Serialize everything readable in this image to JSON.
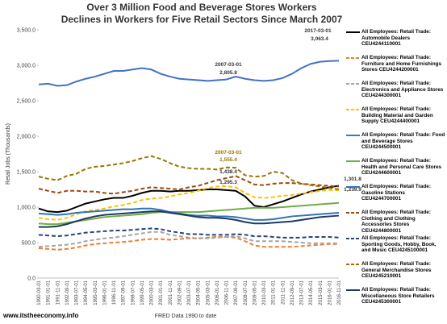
{
  "chart_data": {
    "type": "line",
    "title_lines": [
      "Over 3 Million Food and Beverage Stores Workers",
      "Declines in Workers for Five Retail Sectors Since March 2007"
    ],
    "y_label": "Retail Jobs (Thousands)",
    "x_label": "FRED Data 1990 to date",
    "source": "www.itstheeconomy.info",
    "categories": [
      "1990-03-01",
      "1991-01-01",
      "1991-11-01",
      "1992-09-01",
      "1993-07-01",
      "1994-05-01",
      "1995-03-01",
      "1996-01-01",
      "1996-11-01",
      "1997-09-01",
      "1998-07-01",
      "1999-05-01",
      "2000-03-01",
      "2001-01-01",
      "2001-11-01",
      "2002-09-01",
      "2003-07-01",
      "2004-05-01",
      "2005-03-01",
      "2006-01-01",
      "2006-11-01",
      "2007-09-01",
      "2008-07-01",
      "2009-05-01",
      "2010-03-01",
      "2011-01-01",
      "2011-11-01",
      "2012-09-01",
      "2013-07-01",
      "2014-05-01",
      "2015-03-01",
      "2016-01-01",
      "2016-11-01"
    ],
    "ylim": [
      0,
      3500
    ],
    "yticks": [
      {
        "value": 0,
        "label": "0.0"
      },
      {
        "value": 500,
        "label": "500.0"
      },
      {
        "value": 1000,
        "label": "1,000.0"
      },
      {
        "value": 1500,
        "label": "1,500.0"
      },
      {
        "value": 2000,
        "label": "2,000.0"
      },
      {
        "value": 2500,
        "label": "2,500.0"
      },
      {
        "value": 3000,
        "label": "3,000.0"
      },
      {
        "value": 3500,
        "label": "3,500.0"
      }
    ],
    "grid": false,
    "series": [
      {
        "name": "All Employees: Retail Trade: Automobile Dealers CEU4244110001",
        "color": "#000000",
        "dashed": false,
        "values": [
          980,
          940,
          930,
          950,
          1000,
          1050,
          1080,
          1110,
          1130,
          1130,
          1160,
          1200,
          1230,
          1230,
          1220,
          1230,
          1230,
          1240,
          1250,
          1250,
          1240,
          1230,
          1150,
          1020,
          1000,
          1040,
          1080,
          1130,
          1180,
          1220,
          1250,
          1280,
          1301.8
        ]
      },
      {
        "name": "All Employees: Retail Trade: Furniture and Home Furnishings Stores CEU4244200001",
        "color": "#ed7d31",
        "dashed": true,
        "values": [
          420,
          410,
          400,
          410,
          430,
          460,
          480,
          490,
          500,
          510,
          520,
          540,
          550,
          550,
          540,
          550,
          560,
          560,
          570,
          580,
          580,
          570,
          520,
          460,
          440,
          440,
          440,
          440,
          450,
          460,
          470,
          480,
          480
        ]
      },
      {
        "name": "All Employees: Retail Trade: Electronics and Appliance Stores CEU4244300001",
        "color": "#a5a5a5",
        "dashed": true,
        "values": [
          440,
          450,
          460,
          470,
          490,
          520,
          540,
          560,
          570,
          590,
          610,
          630,
          650,
          650,
          610,
          590,
          570,
          560,
          560,
          570,
          580,
          590,
          560,
          520,
          520,
          520,
          520,
          510,
          500,
          490,
          490,
          490,
          490
        ]
      },
      {
        "name": "All Employees: Retail Trade: Building Material and Garden Supply CEU4244400001",
        "color": "#ffc000",
        "dashed": true,
        "values": [
          850,
          830,
          820,
          850,
          900,
          940,
          960,
          980,
          1010,
          1030,
          1060,
          1100,
          1120,
          1130,
          1150,
          1180,
          1200,
          1230,
          1270,
          1290,
          1295,
          1280,
          1200,
          1140,
          1130,
          1140,
          1160,
          1170,
          1190,
          1210,
          1230,
          1240,
          1239.9
        ]
      },
      {
        "name": "All Employees: Retail Trade: Food and Beverage Stores CEU4244500001",
        "color": "#4472c4",
        "dashed": false,
        "values": [
          2730,
          2740,
          2710,
          2720,
          2770,
          2810,
          2840,
          2880,
          2920,
          2920,
          2940,
          2960,
          2940,
          2880,
          2840,
          2810,
          2800,
          2790,
          2780,
          2790,
          2800,
          2840,
          2810,
          2790,
          2780,
          2790,
          2820,
          2880,
          2960,
          3020,
          3050,
          3060,
          3063.4
        ]
      },
      {
        "name": "All Employees: Retail Trade: Health and Personal Care Stores CEU4244600001",
        "color": "#70ad47",
        "dashed": false,
        "values": [
          770,
          760,
          760,
          780,
          800,
          820,
          840,
          860,
          870,
          880,
          890,
          900,
          920,
          930,
          930,
          930,
          930,
          930,
          940,
          950,
          960,
          970,
          980,
          990,
          990,
          990,
          1000,
          1010,
          1020,
          1030,
          1040,
          1050,
          1060
        ]
      },
      {
        "name": "All Employees: Retail Trade: Gasoline Stations CEU4244700001",
        "color": "#2e75b6",
        "dashed": false,
        "values": [
          910,
          900,
          890,
          900,
          920,
          930,
          940,
          950,
          960,
          970,
          970,
          980,
          980,
          960,
          930,
          910,
          890,
          880,
          880,
          870,
          870,
          860,
          840,
          820,
          820,
          830,
          850,
          870,
          880,
          890,
          900,
          910,
          920
        ]
      },
      {
        "name": "All Employees: Retail Trade: Clothing and Clothing Accessories Stores CEU4244800001",
        "color": "#9e480e",
        "dashed": true,
        "values": [
          1260,
          1230,
          1200,
          1230,
          1230,
          1220,
          1220,
          1200,
          1190,
          1210,
          1230,
          1260,
          1280,
          1270,
          1260,
          1250,
          1280,
          1300,
          1340,
          1380,
          1410,
          1438,
          1380,
          1320,
          1310,
          1330,
          1340,
          1340,
          1330,
          1320,
          1310,
          1300,
          1290
        ]
      },
      {
        "name": "All Employees: Retail Trade: Sporting Goods, Hobby, Book, and Music CEU4245100001",
        "color": "#264478",
        "dashed": true,
        "values": [
          610,
          600,
          590,
          600,
          620,
          640,
          650,
          660,
          670,
          670,
          680,
          690,
          700,
          690,
          660,
          640,
          620,
          620,
          610,
          610,
          610,
          620,
          610,
          590,
          590,
          580,
          570,
          570,
          570,
          580,
          580,
          580,
          570
        ]
      },
      {
        "name": "All Employees: Retail Trade: General Merchandise Stores CEU4245210001",
        "color": "#997300",
        "dashed": true,
        "values": [
          1430,
          1400,
          1380,
          1440,
          1470,
          1540,
          1570,
          1580,
          1600,
          1620,
          1650,
          1690,
          1720,
          1680,
          1620,
          1570,
          1550,
          1540,
          1540,
          1530,
          1560,
          1555,
          1450,
          1430,
          1440,
          1500,
          1480,
          1380,
          1330,
          1310,
          1290,
          1270,
          1250
        ]
      },
      {
        "name": "All Employees: Retail Trade: Miscellaneous Store Retailers CEU4245300001",
        "color": "#203864",
        "dashed": false,
        "values": [
          720,
          720,
          730,
          760,
          800,
          840,
          870,
          890,
          900,
          910,
          920,
          930,
          940,
          940,
          920,
          900,
          880,
          860,
          850,
          850,
          840,
          820,
          790,
          770,
          770,
          780,
          790,
          800,
          820,
          840,
          860,
          870,
          880
        ]
      }
    ],
    "annotations": [
      "2017-03-01",
      "3,063.4",
      "2007-03-01",
      "2,805.8",
      "2007-03-01",
      "1,555.4",
      "1,438.4",
      "1,295.3",
      "1,301.8",
      "1,239.9"
    ]
  }
}
